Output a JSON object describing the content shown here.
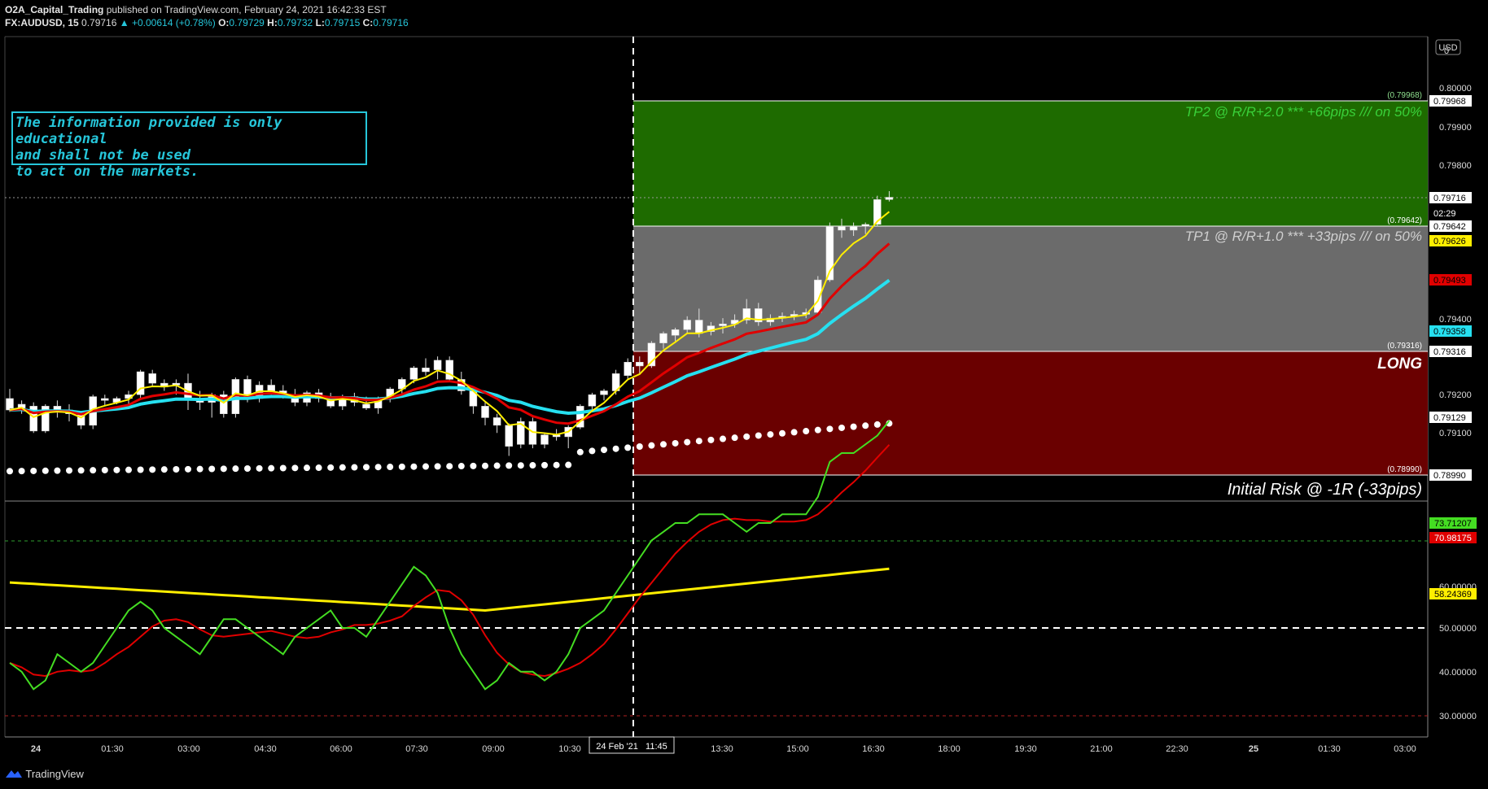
{
  "header": {
    "author": "O2A_Capital_Trading",
    "published": "published on TradingView.com, February 24, 2021 16:42:33 EST",
    "symbol": "FX:AUDUSD, 15",
    "price": "0.79716",
    "change": "▲ +0.00614 (+0.78%)",
    "o_label": "O:",
    "o": "0.79729",
    "h_label": "H:",
    "h": "0.79732",
    "l_label": "L:",
    "l": "0.79715",
    "c_label": "C:",
    "c": "0.79716"
  },
  "disclaimer": [
    "The information provided is only educational",
    "and shall not be used",
    "to act on the markets."
  ],
  "zones": {
    "tp2_label": "TP2 @ R/R+2.0 *** +66pips /// on 50%",
    "tp2_value": "(0.79968)",
    "tp1_label": "TP1 @ R/R+1.0 *** +33pips /// on 50%",
    "tp1_value": "(0.79642)",
    "entry_value": "(0.79316)",
    "long_label": "LONG",
    "stop_value": "(0.78990)",
    "risk_label": "Initial Risk @ -1R (-33pips)"
  },
  "price_axis": {
    "currency": "USD",
    "ticks": [
      "0",
      "0.80000",
      "0.79900",
      "0.79800",
      "0.79400",
      "0.79200",
      "0.79100"
    ],
    "badges": [
      {
        "text": "0.79968",
        "bg": "#ffffff",
        "fg": "#000000"
      },
      {
        "text": "0.79716",
        "bg": "#ffffff",
        "fg": "#000000"
      },
      {
        "text": "02:29",
        "bg": "#000000",
        "fg": "#ffffff"
      },
      {
        "text": "0.79642",
        "bg": "#ffffff",
        "fg": "#000000"
      },
      {
        "text": "0.79626",
        "bg": "#ffee00",
        "fg": "#000000"
      },
      {
        "text": "0.79493",
        "bg": "#e00000",
        "fg": "#000000"
      },
      {
        "text": "0.79358",
        "bg": "#26e0f0",
        "fg": "#000000"
      },
      {
        "text": "0.79316",
        "bg": "#ffffff",
        "fg": "#000000"
      },
      {
        "text": "0.79129",
        "bg": "#ffffff",
        "fg": "#000000"
      },
      {
        "text": "0.78990",
        "bg": "#ffffff",
        "fg": "#000000"
      }
    ]
  },
  "osc_axis": {
    "ticks": [
      "60.00000",
      "50.00000",
      "40.00000",
      "30.00000"
    ],
    "badges": [
      {
        "text": "73.71207",
        "bg": "#44dd22",
        "fg": "#000000"
      },
      {
        "text": "70.98175",
        "bg": "#e00000",
        "fg": "#ffffff"
      },
      {
        "text": "58.24369",
        "bg": "#ffee00",
        "fg": "#000000"
      }
    ]
  },
  "time_axis": {
    "labels": [
      "24",
      "01:30",
      "03:00",
      "04:30",
      "06:00",
      "07:30",
      "09:00",
      "10:30",
      "13:30",
      "15:00",
      "16:30",
      "18:00",
      "19:30",
      "21:00",
      "22:30",
      "25",
      "01:30",
      "03:00"
    ],
    "cursor_label": "24 Feb '21   11:45"
  },
  "footer": {
    "brand": "TradingView"
  },
  "colors": {
    "tp2_zone": "#1e6b00",
    "tp1_zone": "#6b6b6b",
    "risk_zone": "#6a0000",
    "ema_fast": "#ffee00",
    "ema_mid": "#e00000",
    "ema_slow": "#26e0f0",
    "dots": "#ffffff",
    "accent": "#26c6da"
  },
  "chart_data": {
    "type": "candlestick",
    "symbol": "AUDUSD",
    "timeframe": "15",
    "ylim": [
      0.7888,
      0.8004
    ],
    "tp2": 0.79968,
    "tp1": 0.79642,
    "entry": 0.79316,
    "stop": 0.7899,
    "last_close": 0.79716,
    "oscillator": {
      "ylim": [
        28,
        76
      ],
      "levels": [
        70,
        50,
        30
      ],
      "rsi_last": 73.71207,
      "signal_last": 70.98175,
      "slow_last": 58.24369
    },
    "series_overlays": [
      "ema_fast",
      "ema_mid",
      "ema_slow",
      "trailing_dots"
    ]
  }
}
